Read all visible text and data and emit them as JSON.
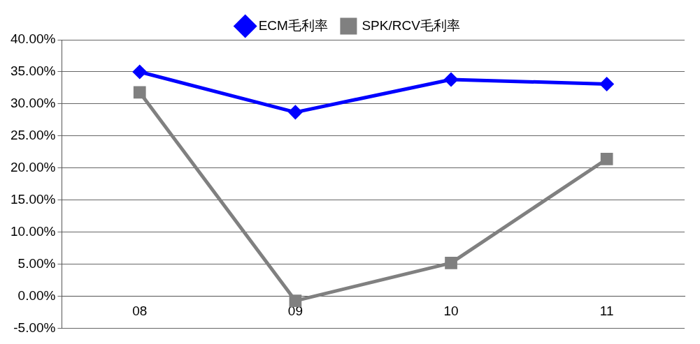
{
  "chart_data": {
    "type": "line",
    "categories": [
      "08",
      "09",
      "10",
      "11"
    ],
    "series": [
      {
        "name": "ECM毛利率",
        "color": "#0000ff",
        "marker": "diamond",
        "values": [
          35.0,
          28.7,
          33.8,
          33.1
        ]
      },
      {
        "name": "SPK/RCV毛利率",
        "color": "#808080",
        "marker": "square",
        "values": [
          31.8,
          -0.7,
          5.2,
          21.4
        ]
      }
    ],
    "ylim": [
      -5,
      40
    ],
    "yticks": [
      {
        "value": -5,
        "label": "-5.00%"
      },
      {
        "value": 0,
        "label": "0.00%"
      },
      {
        "value": 5,
        "label": "5.00%"
      },
      {
        "value": 10,
        "label": "10.00%"
      },
      {
        "value": 15,
        "label": "15.00%"
      },
      {
        "value": 20,
        "label": "20.00%"
      },
      {
        "value": 25,
        "label": "25.00%"
      },
      {
        "value": 30,
        "label": "30.00%"
      },
      {
        "value": 35,
        "label": "35.00%"
      },
      {
        "value": 40,
        "label": "40.00%"
      }
    ],
    "grid": "y",
    "legend": "top",
    "line_style": "solid"
  }
}
